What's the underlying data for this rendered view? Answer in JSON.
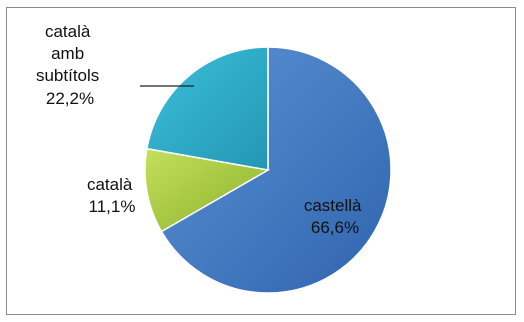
{
  "chart_data": {
    "type": "pie",
    "categories": [
      "castellà",
      "català",
      "català amb subtítols"
    ],
    "values": [
      66.6,
      11.1,
      22.2
    ],
    "data_labels": [
      {
        "lines": [
          "castellà",
          "66,6%"
        ]
      },
      {
        "lines": [
          "català",
          "11,1%"
        ]
      },
      {
        "lines": [
          "català",
          "amb",
          "subtítols",
          "22,2%"
        ]
      }
    ],
    "colors": [
      "#3a75c2",
      "#9cc23a",
      "#2bacc8"
    ],
    "start_angle_deg": 0,
    "direction": "clockwise",
    "legend": "none",
    "title": ""
  }
}
